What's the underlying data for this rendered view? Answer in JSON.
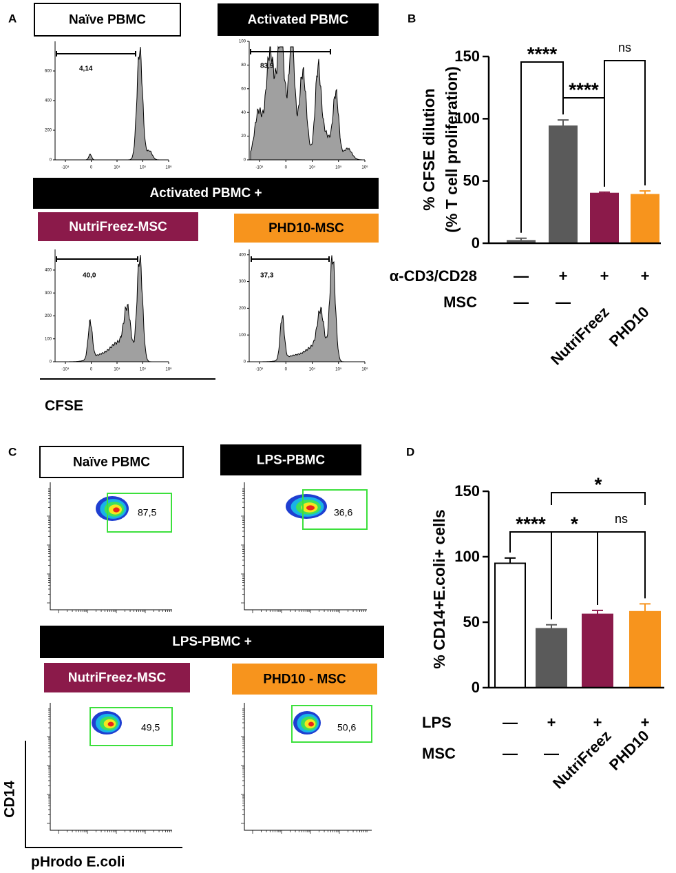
{
  "panel_a": {
    "letter": "A",
    "header": "Activated PBMC +",
    "axis_label": "CFSE",
    "plots": [
      {
        "title": "Naïve PBMC",
        "color": "#ffffff",
        "gate": "4,14",
        "ylim": [
          0,
          800
        ],
        "yticks": [
          0,
          200,
          400,
          600
        ],
        "xticks": [
          "-10⁴",
          "0",
          "10⁴",
          "10⁵",
          "10⁶"
        ]
      },
      {
        "title": "Activated PBMC",
        "color": "#000000",
        "gate": "83,9",
        "ylim": [
          0,
          100
        ],
        "yticks": [
          0,
          20,
          40,
          60,
          80,
          100
        ],
        "xticks": [
          "-10⁴",
          "0",
          "10⁴",
          "10⁵",
          "10⁶"
        ]
      },
      {
        "title": "NutriFreez-MSC",
        "color": "#8b1a4a",
        "gate": "40,0",
        "ylim": [
          0,
          490
        ],
        "yticks": [
          0,
          100,
          200,
          300,
          400
        ],
        "xticks": [
          "-10⁴",
          "0",
          "10⁴",
          "10⁵",
          "10⁶"
        ]
      },
      {
        "title": "PHD10-MSC",
        "color": "#f7941d",
        "gate": "37,3",
        "ylim": [
          0,
          420
        ],
        "yticks": [
          0,
          100,
          200,
          300,
          400
        ],
        "xticks": [
          "-10⁴",
          "0",
          "10⁴",
          "10⁵",
          "10⁶"
        ]
      }
    ]
  },
  "panel_c": {
    "letter": "C",
    "header": "LPS-PBMC +",
    "y_axis_label": "CD14",
    "x_axis_label": "pHrodo E.coli",
    "plots": [
      {
        "title": "Naïve PBMC",
        "color": "#ffffff",
        "gate": "87,5"
      },
      {
        "title": "LPS-PBMC",
        "color": "#000000",
        "gate": "36,6"
      },
      {
        "title": "NutriFreez-MSC",
        "color": "#8b1a4a",
        "gate": "49,5"
      },
      {
        "title": "PHD10 - MSC",
        "color": "#f7941d",
        "gate": "50,6"
      }
    ]
  },
  "chart_data": [
    {
      "type": "bar",
      "panel": "B",
      "ylabel": [
        "% CFSE dilution",
        "(% T cell proliferation)"
      ],
      "values": [
        2,
        94,
        40,
        39
      ],
      "errors": [
        2,
        5,
        1,
        3
      ],
      "colors": [
        "#5a5a5a",
        "#5a5a5a",
        "#8b1a4a",
        "#f7941d"
      ],
      "ylim": [
        0,
        150
      ],
      "yticks": [
        0,
        50,
        100,
        150
      ],
      "rows": [
        {
          "name": "α-CD3/CD28",
          "labels": [
            "—",
            "+",
            "+",
            "+"
          ]
        },
        {
          "name": "MSC",
          "labels": [
            "—",
            "—",
            "NutriFreez",
            "PHD10"
          ]
        }
      ],
      "annotations": [
        {
          "text": "****",
          "between": [
            0,
            1
          ]
        },
        {
          "text": "****",
          "between": [
            1,
            2
          ]
        },
        {
          "text": "ns",
          "between": [
            2,
            3
          ]
        }
      ]
    },
    {
      "type": "bar",
      "panel": "D",
      "ylabel": [
        "% CD14+E.coli+ cells"
      ],
      "values": [
        95,
        45,
        56,
        58
      ],
      "errors": [
        4,
        3,
        3,
        6
      ],
      "colors": [
        "#ffffff",
        "#5a5a5a",
        "#8b1a4a",
        "#f7941d"
      ],
      "ylim": [
        0,
        150
      ],
      "yticks": [
        0,
        50,
        100,
        150
      ],
      "rows": [
        {
          "name": "LPS",
          "labels": [
            "—",
            "+",
            "+",
            "+"
          ]
        },
        {
          "name": "MSC",
          "labels": [
            "—",
            "—",
            "NutriFreez",
            "PHD10"
          ]
        }
      ],
      "annotations": [
        {
          "text": "****",
          "between": [
            0,
            1
          ]
        },
        {
          "text": "*",
          "between": [
            1,
            2
          ]
        },
        {
          "text": "ns",
          "between": [
            2,
            3
          ]
        },
        {
          "text": "*",
          "between": [
            1,
            3
          ]
        }
      ]
    }
  ]
}
